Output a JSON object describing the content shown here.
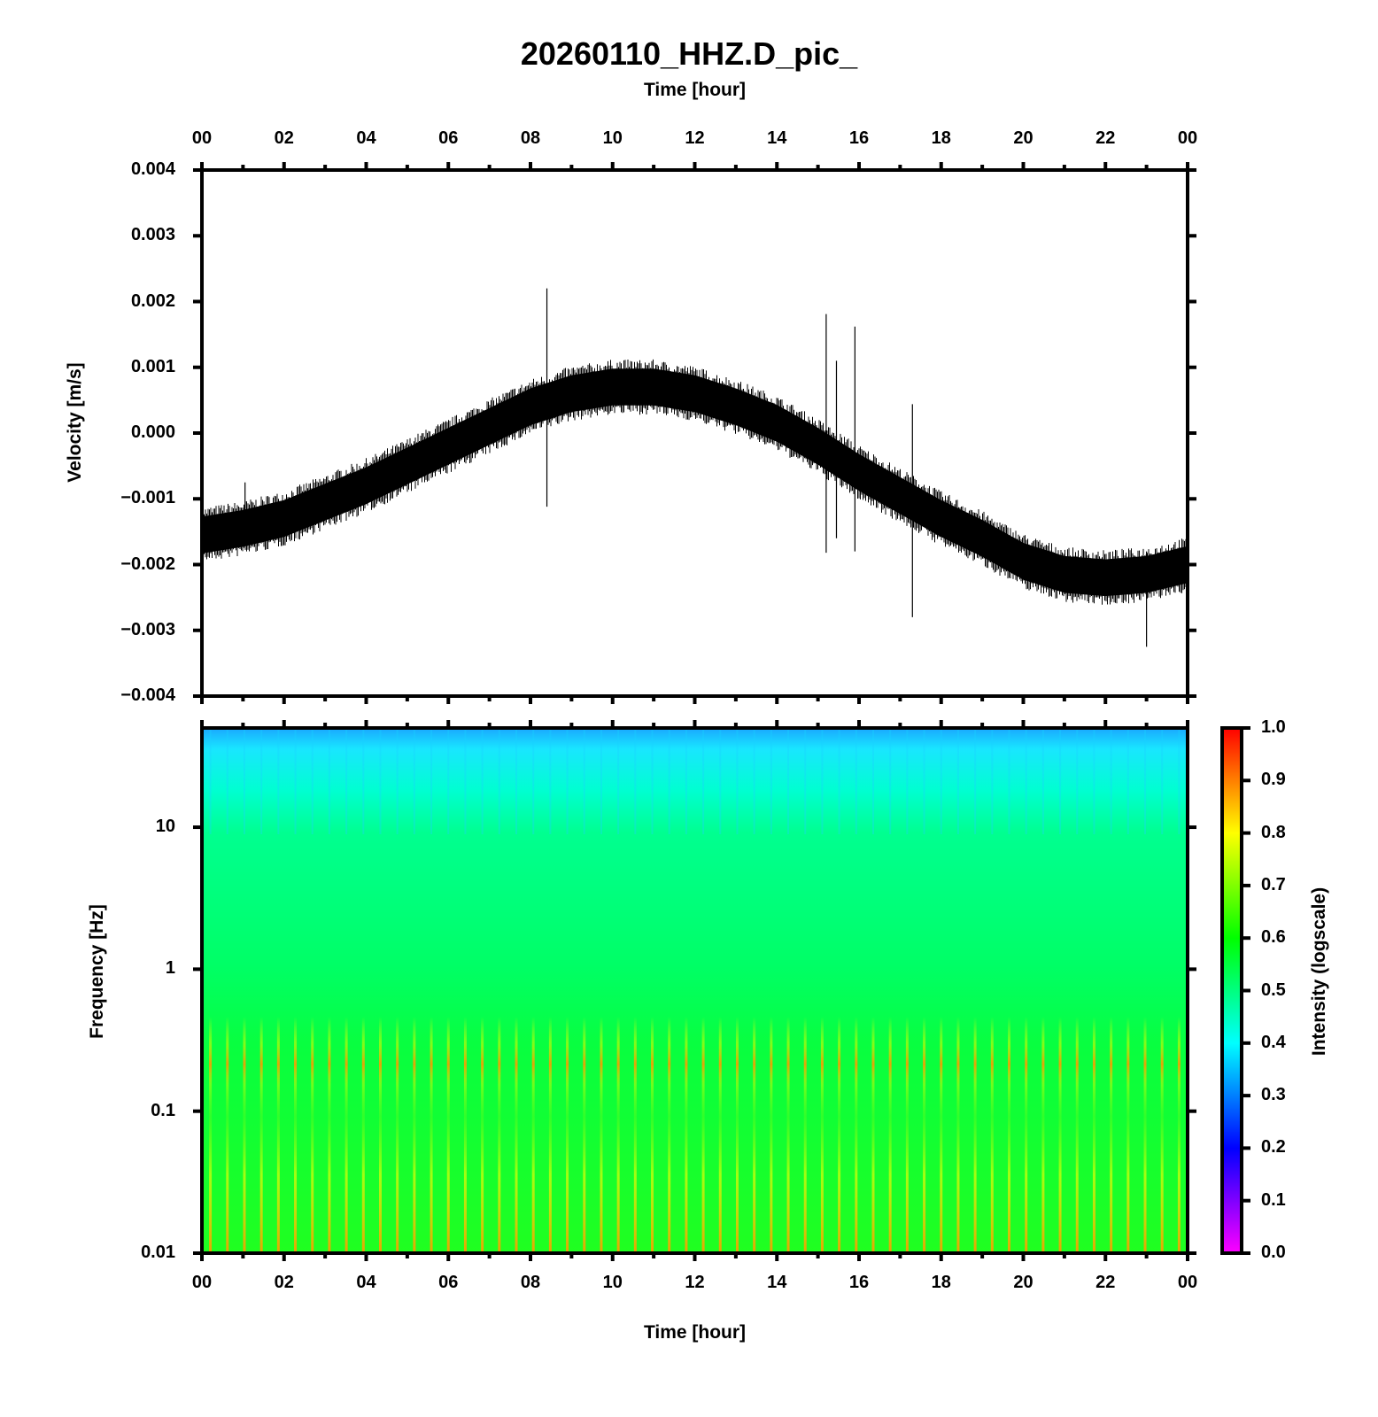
{
  "title": "20260110_HHZ.D_pic_",
  "chart_data": [
    {
      "type": "line",
      "name": "velocity-waveform",
      "title": "20260110_HHZ.D_pic_",
      "xlabel": "Time [hour]",
      "ylabel": "Velocity [m/s]",
      "xlim": [
        0,
        24
      ],
      "ylim": [
        -0.004,
        0.004
      ],
      "x_ticks": [
        "00",
        "02",
        "04",
        "06",
        "08",
        "10",
        "12",
        "14",
        "16",
        "18",
        "20",
        "22",
        "00"
      ],
      "y_ticks": [
        "0.004",
        "0.003",
        "0.002",
        "0.001",
        "0.000",
        "−0.001",
        "−0.002",
        "−0.003",
        "−0.004"
      ],
      "y_tick_values": [
        0.004,
        0.003,
        0.002,
        0.001,
        0.0,
        -0.001,
        -0.002,
        -0.003,
        -0.004
      ],
      "trend": {
        "x": [
          0,
          1,
          2,
          3,
          4,
          5,
          6,
          7,
          8,
          9,
          10,
          11,
          12,
          13,
          14,
          15,
          16,
          17,
          18,
          19,
          20,
          21,
          22,
          23,
          24
        ],
        "center": [
          -0.00155,
          -0.00145,
          -0.0013,
          -0.00105,
          -0.0008,
          -0.0005,
          -0.0002,
          0.0001,
          0.0004,
          0.0006,
          0.0007,
          0.0007,
          0.0006,
          0.0004,
          0.00015,
          -0.0002,
          -0.0006,
          -0.00095,
          -0.0013,
          -0.0016,
          -0.00195,
          -0.00215,
          -0.0022,
          -0.00215,
          -0.002
        ],
        "half_width": 0.00035
      },
      "spikes": [
        {
          "x": 8.4,
          "ymin": -0.00112,
          "ymax": 0.0022
        },
        {
          "x": 15.2,
          "ymin": -0.00182,
          "ymax": 0.00181
        },
        {
          "x": 15.45,
          "ymin": -0.0016,
          "ymax": 0.0011
        },
        {
          "x": 15.9,
          "ymin": -0.0018,
          "ymax": 0.00162
        },
        {
          "x": 17.3,
          "ymin": -0.0028,
          "ymax": 0.00044
        },
        {
          "x": 23.0,
          "ymin": -0.00325,
          "ymax": -0.0018
        },
        {
          "x": 1.05,
          "ymin": -0.0016,
          "ymax": -0.00075
        }
      ]
    },
    {
      "type": "heatmap",
      "name": "spectrogram",
      "xlabel": "Time [hour]",
      "ylabel": "Frequency [Hz]",
      "xlim": [
        0,
        24
      ],
      "ylim": [
        0.01,
        50
      ],
      "yscale": "log",
      "x_ticks": [
        "00",
        "02",
        "04",
        "06",
        "08",
        "10",
        "12",
        "14",
        "16",
        "18",
        "20",
        "22",
        "00"
      ],
      "y_ticks": [
        "10",
        "1",
        "0.1",
        "0.01"
      ],
      "y_tick_values": [
        10,
        1,
        0.1,
        0.01
      ],
      "intensity_profile": {
        "frequency_hz": [
          50,
          30,
          15,
          10,
          3,
          1,
          0.4,
          0.2,
          0.1,
          0.03,
          0.01
        ],
        "intensity": [
          0.37,
          0.42,
          0.48,
          0.52,
          0.55,
          0.58,
          0.65,
          0.72,
          0.6,
          0.66,
          0.7
        ]
      },
      "periodic_stripes_per_hour": 2.4,
      "colorbar": {
        "label": "Intensity (logscale)",
        "range": [
          0.0,
          1.0
        ],
        "ticks": [
          "1.0",
          "0.9",
          "0.8",
          "0.7",
          "0.6",
          "0.5",
          "0.4",
          "0.3",
          "0.2",
          "0.1",
          "0.0"
        ],
        "tick_values": [
          1.0,
          0.9,
          0.8,
          0.7,
          0.6,
          0.5,
          0.4,
          0.3,
          0.2,
          0.1,
          0.0
        ],
        "colors": [
          "#ff00ff",
          "#0000ff",
          "#00ffff",
          "#00ff00",
          "#ffff00",
          "#ff0000"
        ]
      }
    }
  ]
}
